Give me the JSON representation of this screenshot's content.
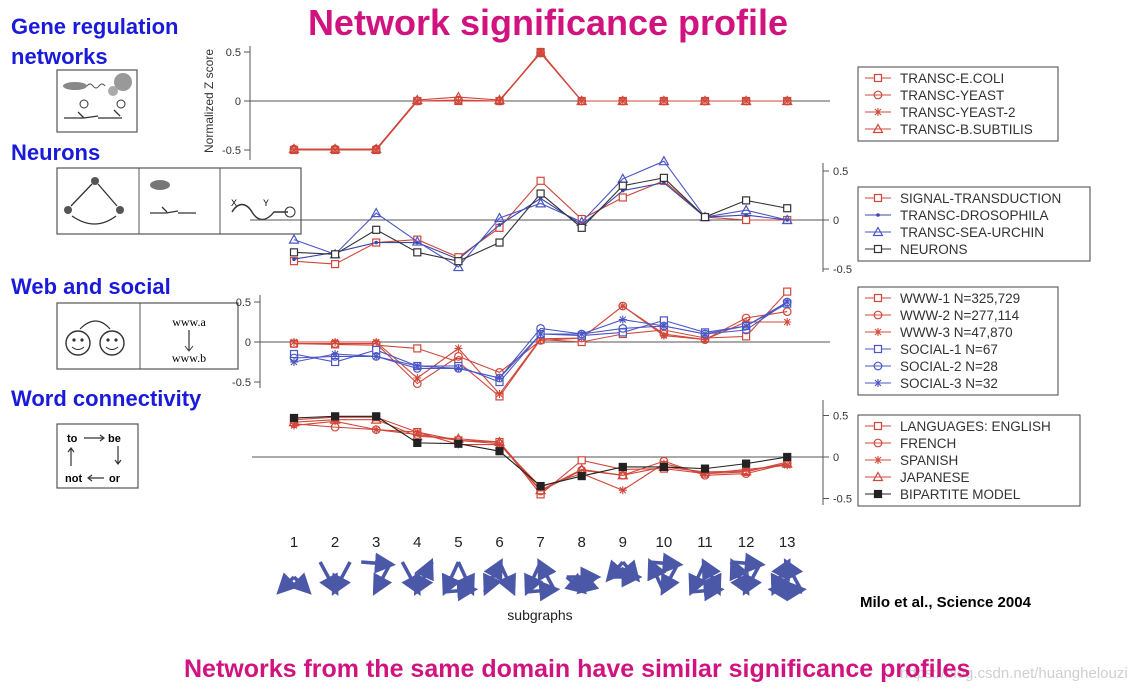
{
  "slide": {
    "title": "Network significance profile",
    "caption": "Networks from the same domain have similar significance profiles",
    "citation": "Milo et al., Science 2004",
    "watermark": "https://blog.csdn.net/huanghelouzi"
  },
  "sections": [
    {
      "label_line1": "Gene regulation",
      "label_line2": "networks"
    },
    {
      "label_line1": "Neurons",
      "label_line2": ""
    },
    {
      "label_line1": "Web and social",
      "label_line2": ""
    },
    {
      "label_line1": "Word connectivity",
      "label_line2": ""
    }
  ],
  "icons": {
    "word_box": {
      "to": "to",
      "be": "be",
      "not": "not",
      "or": "or"
    },
    "web_box": {
      "a": "www.a",
      "b": "www.b"
    },
    "neuron_box": {
      "x": "X",
      "y": "Y"
    }
  },
  "colors": {
    "title": "#d0137e",
    "section": "#1a1adb",
    "red": "#d0473a",
    "blue": "#4a56c4",
    "dark": "#333333",
    "arrow": "#4b58a8"
  },
  "chart_data": [
    {
      "type": "line",
      "ylabel": "Normalized Z score",
      "ylim": [
        -0.6,
        0.6
      ],
      "yticks": [
        "0.5",
        "0",
        "-0.5"
      ],
      "axis_side": "left",
      "x": [
        1,
        2,
        3,
        4,
        5,
        6,
        7,
        8,
        9,
        10,
        11,
        12,
        13
      ],
      "series": [
        {
          "name": "TRANSC-E.COLI",
          "marker": "square",
          "color": "#d0473a",
          "values": [
            -0.5,
            -0.5,
            -0.5,
            0,
            0,
            0,
            0.5,
            0,
            0,
            0,
            0,
            0,
            0
          ]
        },
        {
          "name": "TRANSC-YEAST",
          "marker": "circle",
          "color": "#d0473a",
          "values": [
            -0.49,
            -0.49,
            -0.49,
            0,
            0.01,
            0,
            0.49,
            0,
            0,
            0,
            0,
            0,
            0
          ]
        },
        {
          "name": "TRANSC-YEAST-2",
          "marker": "star",
          "color": "#d0473a",
          "values": [
            -0.5,
            -0.5,
            -0.5,
            0,
            0,
            0,
            0.5,
            0,
            0,
            0,
            0,
            0,
            0
          ]
        },
        {
          "name": "TRANSC-B.SUBTILIS",
          "marker": "triangle",
          "color": "#d0473a",
          "values": [
            -0.49,
            -0.49,
            -0.49,
            0.01,
            0.04,
            0.01,
            0.49,
            0,
            0,
            0,
            0,
            0,
            0
          ]
        }
      ]
    },
    {
      "type": "line",
      "ylim": [
        -0.55,
        0.6
      ],
      "yticks": [
        "0.5",
        "0",
        "-0.5"
      ],
      "axis_side": "right",
      "x": [
        1,
        2,
        3,
        4,
        5,
        6,
        7,
        8,
        9,
        10,
        11,
        12,
        13
      ],
      "series": [
        {
          "name": "SIGNAL-TRANSDUCTION",
          "marker": "square",
          "color": "#d0473a",
          "values": [
            -0.42,
            -0.45,
            -0.23,
            -0.2,
            -0.38,
            -0.08,
            0.4,
            0.01,
            0.23,
            0.4,
            0.03,
            0.0,
            0.0
          ]
        },
        {
          "name": "TRANSC-DROSOPHILA",
          "marker": "dot",
          "color": "#3c45a8",
          "values": [
            -0.4,
            -0.33,
            -0.23,
            -0.23,
            -0.4,
            -0.05,
            0.22,
            -0.05,
            0.3,
            0.38,
            0.03,
            0.05,
            0.0
          ]
        },
        {
          "name": "TRANSC-SEA-URCHIN",
          "marker": "triangle",
          "color": "#4a56c4",
          "values": [
            -0.2,
            -0.35,
            0.07,
            -0.22,
            -0.48,
            0.02,
            0.17,
            -0.02,
            0.42,
            0.6,
            0.03,
            0.1,
            0.0
          ]
        },
        {
          "name": "NEURONS",
          "marker": "square",
          "color": "#333333",
          "values": [
            -0.33,
            -0.35,
            -0.1,
            -0.33,
            -0.42,
            -0.23,
            0.27,
            -0.08,
            0.35,
            0.43,
            0.03,
            0.2,
            0.12
          ]
        }
      ]
    },
    {
      "type": "line",
      "ylim": [
        -0.55,
        0.75
      ],
      "yticks": [
        "0.5",
        "0",
        "-0.5"
      ],
      "axis_side": "left",
      "x": [
        1,
        2,
        3,
        4,
        5,
        6,
        7,
        8,
        9,
        10,
        11,
        12,
        13
      ],
      "series": [
        {
          "name": "WWW-1 N=325,729",
          "marker": "square",
          "color": "#d0473a",
          "values": [
            -0.02,
            -0.03,
            -0.04,
            -0.08,
            -0.25,
            -0.68,
            0.03,
            0.0,
            0.1,
            0.15,
            0.05,
            0.07,
            0.63
          ]
        },
        {
          "name": "WWW-2 N=277,114",
          "marker": "circle",
          "color": "#d0473a",
          "values": [
            -0.02,
            -0.02,
            -0.02,
            -0.52,
            -0.18,
            -0.38,
            0.02,
            0.05,
            0.45,
            0.1,
            0.03,
            0.3,
            0.38
          ]
        },
        {
          "name": "WWW-3 N=47,870",
          "marker": "star",
          "color": "#d0473a",
          "values": [
            0.0,
            0.0,
            0.0,
            -0.45,
            -0.08,
            -0.65,
            0.04,
            0.05,
            0.45,
            0.08,
            0.03,
            0.25,
            0.25
          ]
        },
        {
          "name": "SOCIAL-1 N=67",
          "marker": "square",
          "color": "#4a56c4",
          "values": [
            -0.15,
            -0.25,
            -0.1,
            -0.3,
            -0.3,
            -0.5,
            0.1,
            0.08,
            0.12,
            0.27,
            0.12,
            0.2,
            0.48
          ]
        },
        {
          "name": "SOCIAL-2 N=28",
          "marker": "circle",
          "color": "#4a56c4",
          "values": [
            -0.2,
            -0.18,
            -0.18,
            -0.33,
            -0.33,
            -0.45,
            0.17,
            0.1,
            0.17,
            0.2,
            0.1,
            0.15,
            0.5
          ]
        },
        {
          "name": "SOCIAL-3 N=32",
          "marker": "star",
          "color": "#4a56c4",
          "values": [
            -0.25,
            -0.15,
            -0.18,
            -0.3,
            -0.33,
            -0.45,
            0.1,
            0.1,
            0.28,
            0.2,
            0.1,
            0.2,
            0.5
          ]
        }
      ]
    },
    {
      "type": "line",
      "ylim": [
        -0.55,
        0.6
      ],
      "yticks": [
        "0.5",
        "0",
        "-0.5"
      ],
      "axis_side": "right",
      "x": [
        1,
        2,
        3,
        4,
        5,
        6,
        7,
        8,
        9,
        10,
        11,
        12,
        13
      ],
      "series": [
        {
          "name": "LANGUAGES: ENGLISH",
          "marker": "square",
          "color": "#d0473a",
          "values": [
            0.45,
            0.48,
            0.48,
            0.3,
            0.2,
            0.18,
            -0.45,
            -0.04,
            -0.15,
            -0.14,
            -0.2,
            -0.18,
            -0.06
          ]
        },
        {
          "name": "FRENCH",
          "marker": "circle",
          "color": "#d0473a",
          "values": [
            0.4,
            0.36,
            0.33,
            0.27,
            0.2,
            0.16,
            -0.41,
            -0.16,
            -0.22,
            -0.05,
            -0.22,
            -0.2,
            -0.08
          ]
        },
        {
          "name": "SPANISH",
          "marker": "star",
          "color": "#d0473a",
          "values": [
            0.38,
            0.43,
            0.33,
            0.3,
            0.15,
            0.15,
            -0.36,
            -0.2,
            -0.4,
            -0.08,
            -0.2,
            -0.15,
            -0.1
          ]
        },
        {
          "name": "JAPANESE",
          "marker": "triangle",
          "color": "#d0473a",
          "values": [
            0.42,
            0.45,
            0.45,
            0.25,
            0.22,
            0.18,
            -0.4,
            -0.15,
            -0.22,
            -0.12,
            -0.18,
            -0.17,
            -0.08
          ]
        },
        {
          "name": "BIPARTITE MODEL",
          "marker": "filled-square",
          "color": "#222222",
          "values": [
            0.47,
            0.49,
            0.49,
            0.17,
            0.16,
            0.07,
            -0.35,
            -0.23,
            -0.12,
            -0.12,
            -0.14,
            -0.08,
            0.0
          ]
        }
      ]
    }
  ],
  "xaxis": {
    "ticks": [
      "1",
      "2",
      "3",
      "4",
      "5",
      "6",
      "7",
      "8",
      "9",
      "10",
      "11",
      "12",
      "13"
    ],
    "label": "subgraphs"
  }
}
